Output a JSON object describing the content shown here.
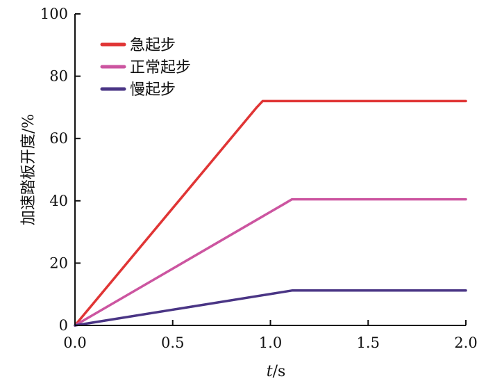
{
  "chart_data": {
    "type": "line",
    "title": "",
    "xlabel": {
      "italic": "t",
      "rest": "/s"
    },
    "ylabel": "加速踏板开度/%",
    "xlim": [
      0,
      2.0
    ],
    "ylim": [
      0,
      100
    ],
    "x_ticks": [
      "0.0",
      "0.5",
      "1.0",
      "1.5",
      "2.0"
    ],
    "x_tick_values": [
      0,
      0.5,
      1.0,
      1.5,
      2.0
    ],
    "y_ticks": [
      "0",
      "20",
      "40",
      "60",
      "80",
      "100"
    ],
    "y_tick_values": [
      0,
      20,
      40,
      60,
      80,
      100
    ],
    "grid": false,
    "legend_position": "top-left",
    "series": [
      {
        "name": "急起步",
        "color": "#e03535",
        "x": [
          0,
          0.93,
          0.96,
          2.0
        ],
        "y": [
          0,
          70,
          72,
          72
        ]
      },
      {
        "name": "正常起步",
        "color": "#cc55a0",
        "x": [
          0,
          1.07,
          1.11,
          2.0
        ],
        "y": [
          0,
          39,
          40.5,
          40.5
        ]
      },
      {
        "name": "慢起步",
        "color": "#4a3585",
        "x": [
          0,
          1.08,
          1.11,
          2.0
        ],
        "y": [
          0,
          10.9,
          11.2,
          11.2
        ]
      }
    ]
  }
}
